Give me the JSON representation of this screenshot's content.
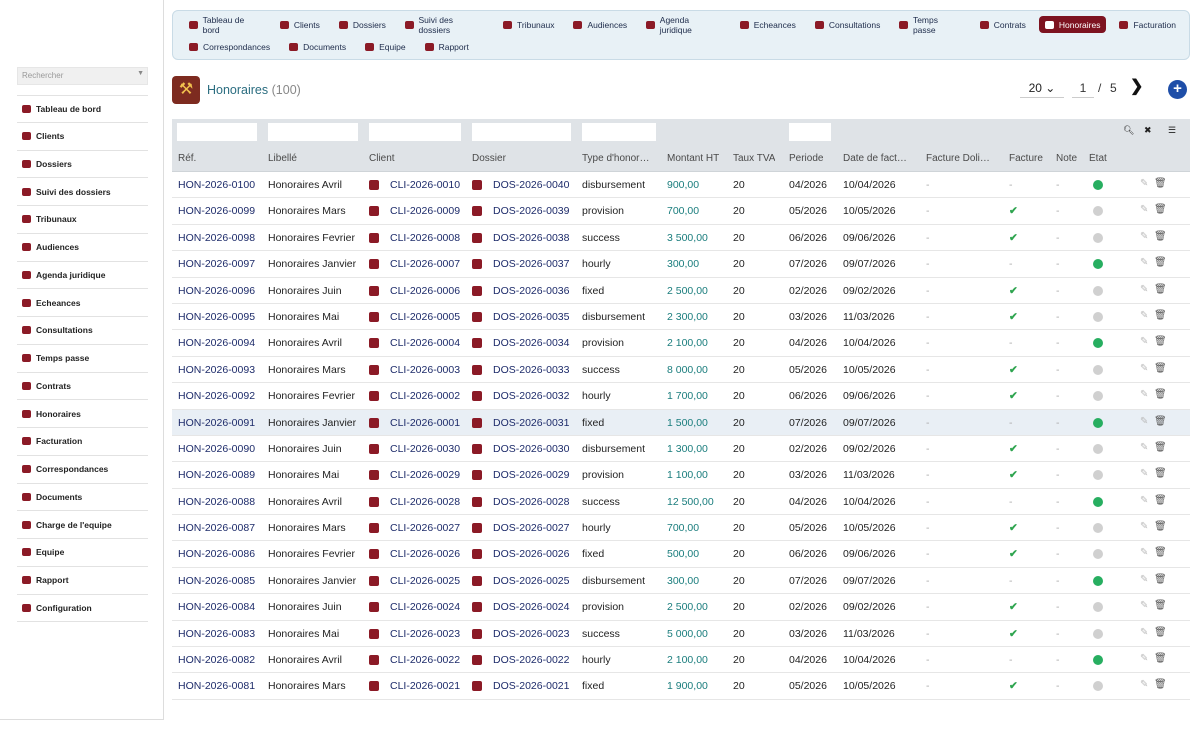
{
  "search": {
    "placeholder": "Rechercher"
  },
  "sidebar": {
    "items": [
      {
        "label": "Tableau de bord"
      },
      {
        "label": "Clients"
      },
      {
        "label": "Dossiers"
      },
      {
        "label": "Suivi des dossiers"
      },
      {
        "label": "Tribunaux"
      },
      {
        "label": "Audiences"
      },
      {
        "label": "Agenda juridique"
      },
      {
        "label": "Echeances"
      },
      {
        "label": "Consultations"
      },
      {
        "label": "Temps passe"
      },
      {
        "label": "Contrats"
      },
      {
        "label": "Honoraires"
      },
      {
        "label": "Facturation"
      },
      {
        "label": "Correspondances"
      },
      {
        "label": "Documents"
      },
      {
        "label": "Charge de l'equipe"
      },
      {
        "label": "Equipe"
      },
      {
        "label": "Rapport"
      },
      {
        "label": "Configuration"
      }
    ]
  },
  "topmenu": {
    "row1": [
      {
        "label": "Tableau de bord"
      },
      {
        "label": "Clients"
      },
      {
        "label": "Dossiers"
      },
      {
        "label": "Suivi des dossiers"
      },
      {
        "label": "Tribunaux"
      },
      {
        "label": "Audiences"
      },
      {
        "label": "Agenda juridique"
      },
      {
        "label": "Echeances"
      },
      {
        "label": "Consultations"
      },
      {
        "label": "Temps passe"
      },
      {
        "label": "Contrats"
      },
      {
        "label": "Honoraires",
        "active": true
      },
      {
        "label": "Facturation"
      }
    ],
    "row2": [
      {
        "label": "Correspondances"
      },
      {
        "label": "Documents"
      },
      {
        "label": "Equipe"
      },
      {
        "label": "Rapport"
      }
    ]
  },
  "page": {
    "title": "Honoraires",
    "count": "(100)"
  },
  "pager": {
    "per_page": "20 ⌄",
    "page": "1",
    "sep": "/",
    "total": "5",
    "next": "❯",
    "add": "+"
  },
  "colors": {
    "accent": "#7d1320",
    "link": "#1d2b6a",
    "amount": "#1a7d7d",
    "ok": "#2ea44f",
    "status_on": "#27ae60",
    "status_off": "#d0d0d0"
  },
  "columns": [
    "Réf.",
    "Libellé",
    "Client",
    "Dossier",
    "Type d'honor…",
    "Montant HT",
    "Taux TVA",
    "Periode",
    "Date de fact…",
    "Facture Doli…",
    "Facture",
    "Note",
    "État"
  ],
  "rows": [
    {
      "ref": "HON-2026-0100",
      "libelle": "Honoraires Avril",
      "client": "CLI-2026-0010",
      "dossier": "DOS-2026-0040",
      "type": "disbursement",
      "montant": "900,00",
      "tva": "20",
      "periode": "04/2026",
      "date": "10/04/2026",
      "doli": "-",
      "facture": "-",
      "note": "-",
      "etat": "on"
    },
    {
      "ref": "HON-2026-0099",
      "libelle": "Honoraires Mars",
      "client": "CLI-2026-0009",
      "dossier": "DOS-2026-0039",
      "type": "provision",
      "montant": "700,00",
      "tva": "20",
      "periode": "05/2026",
      "date": "10/05/2026",
      "doli": "-",
      "facture": "✔",
      "note": "-",
      "etat": "off"
    },
    {
      "ref": "HON-2026-0098",
      "libelle": "Honoraires Fevrier",
      "client": "CLI-2026-0008",
      "dossier": "DOS-2026-0038",
      "type": "success",
      "montant": "3 500,00",
      "tva": "20",
      "periode": "06/2026",
      "date": "09/06/2026",
      "doli": "-",
      "facture": "✔",
      "note": "-",
      "etat": "off"
    },
    {
      "ref": "HON-2026-0097",
      "libelle": "Honoraires Janvier",
      "client": "CLI-2026-0007",
      "dossier": "DOS-2026-0037",
      "type": "hourly",
      "montant": "300,00",
      "tva": "20",
      "periode": "07/2026",
      "date": "09/07/2026",
      "doli": "-",
      "facture": "-",
      "note": "-",
      "etat": "on"
    },
    {
      "ref": "HON-2026-0096",
      "libelle": "Honoraires Juin",
      "client": "CLI-2026-0006",
      "dossier": "DOS-2026-0036",
      "type": "fixed",
      "montant": "2 500,00",
      "tva": "20",
      "periode": "02/2026",
      "date": "09/02/2026",
      "doli": "-",
      "facture": "✔",
      "note": "-",
      "etat": "off"
    },
    {
      "ref": "HON-2026-0095",
      "libelle": "Honoraires Mai",
      "client": "CLI-2026-0005",
      "dossier": "DOS-2026-0035",
      "type": "disbursement",
      "montant": "2 300,00",
      "tva": "20",
      "periode": "03/2026",
      "date": "11/03/2026",
      "doli": "-",
      "facture": "✔",
      "note": "-",
      "etat": "off"
    },
    {
      "ref": "HON-2026-0094",
      "libelle": "Honoraires Avril",
      "client": "CLI-2026-0004",
      "dossier": "DOS-2026-0034",
      "type": "provision",
      "montant": "2 100,00",
      "tva": "20",
      "periode": "04/2026",
      "date": "10/04/2026",
      "doli": "-",
      "facture": "-",
      "note": "-",
      "etat": "on"
    },
    {
      "ref": "HON-2026-0093",
      "libelle": "Honoraires Mars",
      "client": "CLI-2026-0003",
      "dossier": "DOS-2026-0033",
      "type": "success",
      "montant": "8 000,00",
      "tva": "20",
      "periode": "05/2026",
      "date": "10/05/2026",
      "doli": "-",
      "facture": "✔",
      "note": "-",
      "etat": "off"
    },
    {
      "ref": "HON-2026-0092",
      "libelle": "Honoraires Fevrier",
      "client": "CLI-2026-0002",
      "dossier": "DOS-2026-0032",
      "type": "hourly",
      "montant": "1 700,00",
      "tva": "20",
      "periode": "06/2026",
      "date": "09/06/2026",
      "doli": "-",
      "facture": "✔",
      "note": "-",
      "etat": "off"
    },
    {
      "ref": "HON-2026-0091",
      "libelle": "Honoraires Janvier",
      "client": "CLI-2026-0001",
      "dossier": "DOS-2026-0031",
      "type": "fixed",
      "montant": "1 500,00",
      "tva": "20",
      "periode": "07/2026",
      "date": "09/07/2026",
      "doli": "-",
      "facture": "-",
      "note": "-",
      "etat": "on",
      "highlight": true
    },
    {
      "ref": "HON-2026-0090",
      "libelle": "Honoraires Juin",
      "client": "CLI-2026-0030",
      "dossier": "DOS-2026-0030",
      "type": "disbursement",
      "montant": "1 300,00",
      "tva": "20",
      "periode": "02/2026",
      "date": "09/02/2026",
      "doli": "-",
      "facture": "✔",
      "note": "-",
      "etat": "off"
    },
    {
      "ref": "HON-2026-0089",
      "libelle": "Honoraires Mai",
      "client": "CLI-2026-0029",
      "dossier": "DOS-2026-0029",
      "type": "provision",
      "montant": "1 100,00",
      "tva": "20",
      "periode": "03/2026",
      "date": "11/03/2026",
      "doli": "-",
      "facture": "✔",
      "note": "-",
      "etat": "off"
    },
    {
      "ref": "HON-2026-0088",
      "libelle": "Honoraires Avril",
      "client": "CLI-2026-0028",
      "dossier": "DOS-2026-0028",
      "type": "success",
      "montant": "12 500,00",
      "tva": "20",
      "periode": "04/2026",
      "date": "10/04/2026",
      "doli": "-",
      "facture": "-",
      "note": "-",
      "etat": "on"
    },
    {
      "ref": "HON-2026-0087",
      "libelle": "Honoraires Mars",
      "client": "CLI-2026-0027",
      "dossier": "DOS-2026-0027",
      "type": "hourly",
      "montant": "700,00",
      "tva": "20",
      "periode": "05/2026",
      "date": "10/05/2026",
      "doli": "-",
      "facture": "✔",
      "note": "-",
      "etat": "off"
    },
    {
      "ref": "HON-2026-0086",
      "libelle": "Honoraires Fevrier",
      "client": "CLI-2026-0026",
      "dossier": "DOS-2026-0026",
      "type": "fixed",
      "montant": "500,00",
      "tva": "20",
      "periode": "06/2026",
      "date": "09/06/2026",
      "doli": "-",
      "facture": "✔",
      "note": "-",
      "etat": "off"
    },
    {
      "ref": "HON-2026-0085",
      "libelle": "Honoraires Janvier",
      "client": "CLI-2026-0025",
      "dossier": "DOS-2026-0025",
      "type": "disbursement",
      "montant": "300,00",
      "tva": "20",
      "periode": "07/2026",
      "date": "09/07/2026",
      "doli": "-",
      "facture": "-",
      "note": "-",
      "etat": "on"
    },
    {
      "ref": "HON-2026-0084",
      "libelle": "Honoraires Juin",
      "client": "CLI-2026-0024",
      "dossier": "DOS-2026-0024",
      "type": "provision",
      "montant": "2 500,00",
      "tva": "20",
      "periode": "02/2026",
      "date": "09/02/2026",
      "doli": "-",
      "facture": "✔",
      "note": "-",
      "etat": "off"
    },
    {
      "ref": "HON-2026-0083",
      "libelle": "Honoraires Mai",
      "client": "CLI-2026-0023",
      "dossier": "DOS-2026-0023",
      "type": "success",
      "montant": "5 000,00",
      "tva": "20",
      "periode": "03/2026",
      "date": "11/03/2026",
      "doli": "-",
      "facture": "✔",
      "note": "-",
      "etat": "off"
    },
    {
      "ref": "HON-2026-0082",
      "libelle": "Honoraires Avril",
      "client": "CLI-2026-0022",
      "dossier": "DOS-2026-0022",
      "type": "hourly",
      "montant": "2 100,00",
      "tva": "20",
      "periode": "04/2026",
      "date": "10/04/2026",
      "doli": "-",
      "facture": "-",
      "note": "-",
      "etat": "on"
    },
    {
      "ref": "HON-2026-0081",
      "libelle": "Honoraires Mars",
      "client": "CLI-2026-0021",
      "dossier": "DOS-2026-0021",
      "type": "fixed",
      "montant": "1 900,00",
      "tva": "20",
      "periode": "05/2026",
      "date": "10/05/2026",
      "doli": "-",
      "facture": "✔",
      "note": "-",
      "etat": "off"
    }
  ]
}
